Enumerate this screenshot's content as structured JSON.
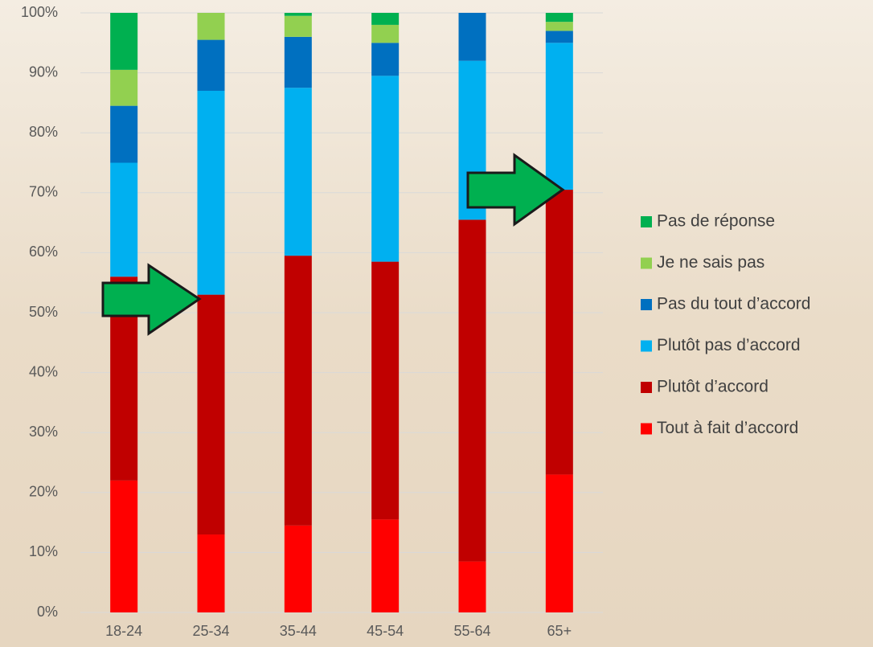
{
  "chart_data": {
    "type": "stacked_bar",
    "categories": [
      "18-24",
      "25-34",
      "35-44",
      "45-54",
      "55-64",
      "65+"
    ],
    "series": [
      {
        "name": "Tout à fait d’accord",
        "color": "#ff0000",
        "values": [
          22,
          13,
          14.5,
          15.5,
          8.5,
          23
        ]
      },
      {
        "name": "Plutôt d’accord",
        "color": "#c00000",
        "values": [
          34,
          40,
          45,
          43,
          57,
          47.5
        ]
      },
      {
        "name": "Plutôt pas d’accord",
        "color": "#00b0f0",
        "values": [
          19,
          34,
          28,
          31,
          26.5,
          24.5
        ]
      },
      {
        "name": "Pas du tout d’accord",
        "color": "#0070c0",
        "values": [
          9.5,
          8.5,
          8.5,
          5.5,
          8,
          2
        ]
      },
      {
        "name": "Je ne sais pas",
        "color": "#92d050",
        "values": [
          6,
          4.5,
          3.5,
          3,
          0,
          1.5
        ]
      },
      {
        "name": "Pas de réponse",
        "color": "#00b050",
        "values": [
          9.5,
          0,
          0.5,
          2,
          0,
          1.5
        ]
      }
    ],
    "ylim": [
      0,
      100
    ],
    "yticks": [
      {
        "value": 0,
        "label": "0%"
      },
      {
        "value": 10,
        "label": "10%"
      },
      {
        "value": 20,
        "label": "20%"
      },
      {
        "value": 30,
        "label": "30%"
      },
      {
        "value": 40,
        "label": "40%"
      },
      {
        "value": 50,
        "label": "50%"
      },
      {
        "value": 60,
        "label": "60%"
      },
      {
        "value": 70,
        "label": "70%"
      },
      {
        "value": 80,
        "label": "80%"
      },
      {
        "value": 90,
        "label": "90%"
      },
      {
        "value": 100,
        "label": "100%"
      }
    ],
    "grid": true,
    "legend": "right"
  }
}
